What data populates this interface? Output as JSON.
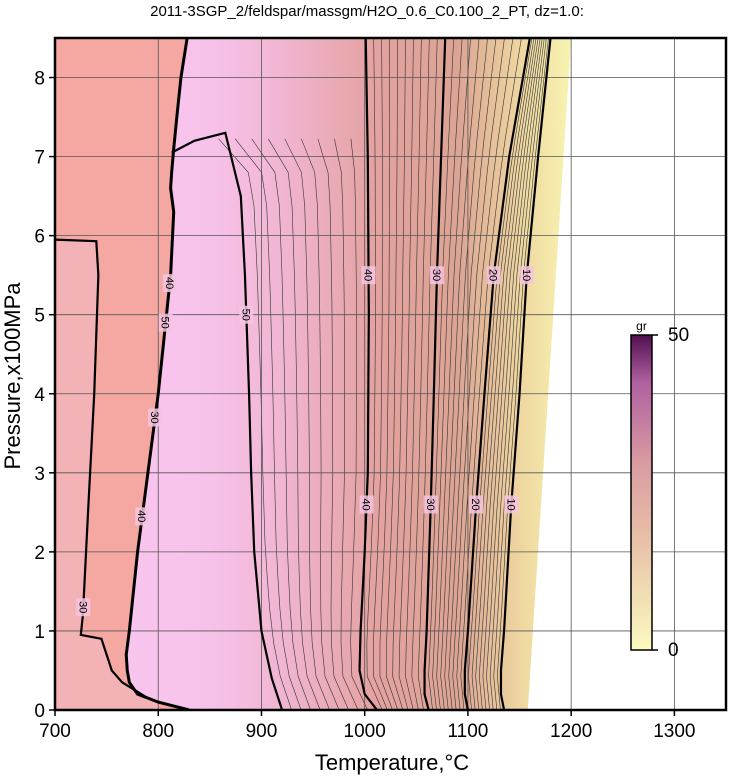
{
  "chart_data": {
    "type": "contour",
    "title": "2011-3SGP_2/feldspar/massgm/H2O_0.6_C0.100_2_PT, dz=1.0:",
    "xlabel": "Temperature,°C",
    "ylabel": "Pressure,x100MPa",
    "xlim": [
      700,
      1350
    ],
    "ylim": [
      0,
      8.5
    ],
    "xticks": [
      700,
      800,
      900,
      1000,
      1100,
      1200,
      1300
    ],
    "yticks": [
      0,
      1,
      2,
      3,
      4,
      5,
      6,
      7,
      8
    ],
    "grid": true,
    "contours": [
      {
        "level": 40,
        "x": [
          1001,
          1003,
          1004,
          1003,
          1000,
          996,
          995,
          1000,
          1012
        ],
        "y": [
          8.5,
          7,
          5,
          3,
          2,
          1,
          0.5,
          0.2,
          0
        ]
      },
      {
        "level": 30,
        "x": [
          1078,
          1074,
          1070,
          1067,
          1064,
          1060,
          1058,
          1058,
          1062
        ],
        "y": [
          8.5,
          7,
          5.5,
          4,
          2.6,
          1,
          0.5,
          0.2,
          0
        ]
      },
      {
        "level": 20,
        "x": [
          1160,
          1140,
          1125,
          1116,
          1108,
          1100,
          1097,
          1097,
          1100
        ],
        "y": [
          8.5,
          7,
          5.5,
          4,
          2.6,
          1,
          0.5,
          0.2,
          0
        ]
      },
      {
        "level": 10,
        "x": [
          1180,
          1168,
          1157,
          1150,
          1142,
          1135,
          1132,
          1132,
          1135
        ],
        "y": [
          8.5,
          7,
          5.5,
          4,
          2.6,
          1,
          0.5,
          0.2,
          0
        ]
      },
      {
        "level": 50,
        "x": [
          813,
          835,
          865,
          880,
          884,
          888,
          890,
          893,
          900,
          910,
          920
        ],
        "y": [
          7.05,
          7.2,
          7.3,
          6.5,
          5.5,
          4,
          3,
          2,
          1,
          0.4,
          0
        ]
      },
      {
        "level": 30,
        "x": [
          700,
          740,
          742,
          738,
          732,
          727,
          725,
          745,
          755,
          765,
          790,
          800
        ],
        "y": [
          5.95,
          5.93,
          5.5,
          4,
          2.5,
          1.2,
          0.95,
          0.9,
          0.5,
          0.35,
          0.15,
          0.1
        ]
      }
    ],
    "boundary": {
      "x": [
        828,
        822,
        818,
        815,
        813,
        812,
        815,
        812,
        808,
        800,
        790,
        780,
        772,
        769,
        770,
        772,
        780,
        800,
        830
      ],
      "y": [
        8.5,
        8,
        7.5,
        7.1,
        6.8,
        6.6,
        6.3,
        5.5,
        5,
        4,
        3,
        2,
        1,
        0.7,
        0.5,
        0.35,
        0.2,
        0.1,
        0
      ]
    },
    "colorbar": {
      "label": "gr",
      "lim": [
        0,
        50
      ],
      "ticks": [
        0,
        50
      ]
    }
  }
}
